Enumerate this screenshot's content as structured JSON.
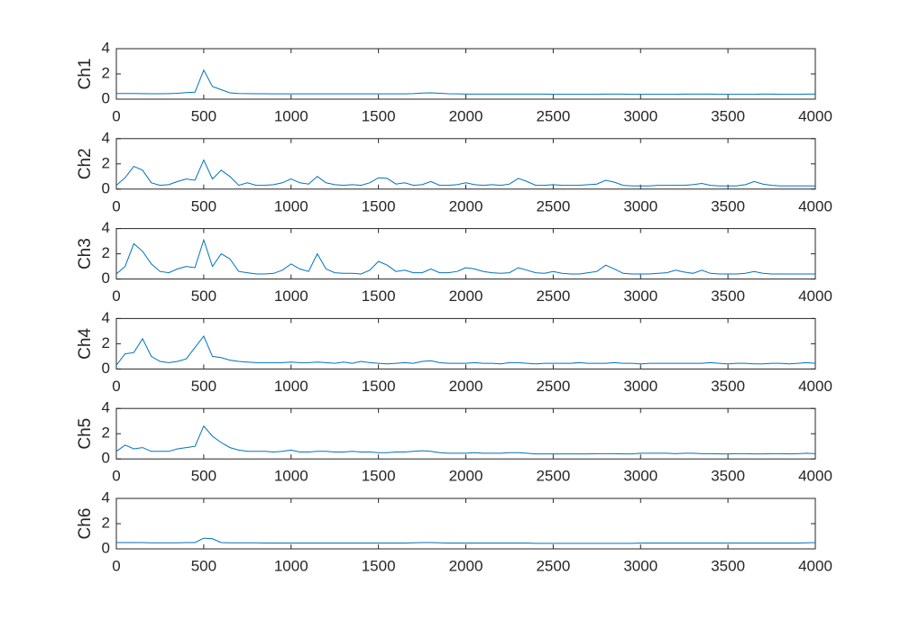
{
  "chart_data": [
    {
      "type": "line",
      "ylabel": "Ch1",
      "color": "#0072bd",
      "xlim": [
        0,
        4000
      ],
      "ylim": [
        0,
        4
      ],
      "xticks": [
        0,
        500,
        1000,
        1500,
        2000,
        2500,
        3000,
        3500,
        4000
      ],
      "yticks": [
        0,
        2,
        4
      ],
      "x": [
        0,
        50,
        100,
        150,
        200,
        250,
        300,
        350,
        400,
        450,
        500,
        550,
        600,
        650,
        700,
        750,
        800,
        850,
        900,
        950,
        1000,
        1050,
        1100,
        1150,
        1200,
        1250,
        1300,
        1350,
        1400,
        1450,
        1500,
        1550,
        1600,
        1650,
        1700,
        1750,
        1800,
        1850,
        1900,
        1950,
        2000,
        2050,
        2100,
        2150,
        2200,
        2250,
        2300,
        2350,
        2400,
        2450,
        2500,
        2550,
        2600,
        2650,
        2700,
        2750,
        2800,
        2850,
        2900,
        2950,
        3000,
        3050,
        3100,
        3150,
        3200,
        3250,
        3300,
        3350,
        3400,
        3450,
        3500,
        3550,
        3600,
        3650,
        3700,
        3750,
        3800,
        3850,
        3900,
        3950,
        4000
      ],
      "values": [
        0.45,
        0.45,
        0.45,
        0.44,
        0.43,
        0.43,
        0.44,
        0.46,
        0.52,
        0.55,
        2.3,
        1.0,
        0.75,
        0.5,
        0.45,
        0.44,
        0.43,
        0.43,
        0.42,
        0.42,
        0.42,
        0.42,
        0.42,
        0.42,
        0.42,
        0.42,
        0.42,
        0.42,
        0.42,
        0.42,
        0.42,
        0.42,
        0.42,
        0.42,
        0.44,
        0.48,
        0.5,
        0.46,
        0.43,
        0.42,
        0.4,
        0.4,
        0.4,
        0.4,
        0.4,
        0.4,
        0.4,
        0.4,
        0.4,
        0.4,
        0.38,
        0.38,
        0.38,
        0.38,
        0.38,
        0.38,
        0.4,
        0.4,
        0.4,
        0.38,
        0.38,
        0.38,
        0.38,
        0.38,
        0.38,
        0.4,
        0.4,
        0.4,
        0.4,
        0.38,
        0.38,
        0.38,
        0.38,
        0.38,
        0.4,
        0.4,
        0.38,
        0.38,
        0.38,
        0.4,
        0.4
      ]
    },
    {
      "type": "line",
      "ylabel": "Ch2",
      "color": "#0072bd",
      "xlim": [
        0,
        4000
      ],
      "ylim": [
        0,
        4
      ],
      "xticks": [
        0,
        500,
        1000,
        1500,
        2000,
        2500,
        3000,
        3500,
        4000
      ],
      "yticks": [
        0,
        2,
        4
      ],
      "x": [
        0,
        50,
        100,
        150,
        200,
        250,
        300,
        350,
        400,
        450,
        500,
        550,
        600,
        650,
        700,
        750,
        800,
        850,
        900,
        950,
        1000,
        1050,
        1100,
        1150,
        1200,
        1250,
        1300,
        1350,
        1400,
        1450,
        1500,
        1550,
        1600,
        1650,
        1700,
        1750,
        1800,
        1850,
        1900,
        1950,
        2000,
        2050,
        2100,
        2150,
        2200,
        2250,
        2300,
        2350,
        2400,
        2450,
        2500,
        2550,
        2600,
        2650,
        2700,
        2750,
        2800,
        2850,
        2900,
        2950,
        3000,
        3050,
        3100,
        3150,
        3200,
        3250,
        3300,
        3350,
        3400,
        3450,
        3500,
        3550,
        3600,
        3650,
        3700,
        3750,
        3800,
        3850,
        3900,
        3950,
        4000
      ],
      "values": [
        0.3,
        0.9,
        1.8,
        1.5,
        0.5,
        0.3,
        0.35,
        0.6,
        0.8,
        0.7,
        2.3,
        0.8,
        1.5,
        1.0,
        0.3,
        0.5,
        0.3,
        0.3,
        0.35,
        0.5,
        0.8,
        0.5,
        0.4,
        1.0,
        0.5,
        0.35,
        0.3,
        0.35,
        0.3,
        0.5,
        0.9,
        0.85,
        0.4,
        0.5,
        0.3,
        0.35,
        0.6,
        0.3,
        0.3,
        0.35,
        0.5,
        0.35,
        0.3,
        0.35,
        0.3,
        0.4,
        0.85,
        0.6,
        0.3,
        0.3,
        0.35,
        0.3,
        0.3,
        0.3,
        0.35,
        0.4,
        0.7,
        0.55,
        0.3,
        0.25,
        0.25,
        0.25,
        0.3,
        0.3,
        0.3,
        0.3,
        0.35,
        0.45,
        0.3,
        0.25,
        0.25,
        0.25,
        0.35,
        0.6,
        0.4,
        0.3,
        0.25,
        0.25,
        0.25,
        0.25,
        0.25
      ]
    },
    {
      "type": "line",
      "ylabel": "Ch3",
      "color": "#0072bd",
      "xlim": [
        0,
        4000
      ],
      "ylim": [
        0,
        4
      ],
      "xticks": [
        0,
        500,
        1000,
        1500,
        2000,
        2500,
        3000,
        3500,
        4000
      ],
      "yticks": [
        0,
        2,
        4
      ],
      "x": [
        0,
        50,
        100,
        150,
        200,
        250,
        300,
        350,
        400,
        450,
        500,
        550,
        600,
        650,
        700,
        750,
        800,
        850,
        900,
        950,
        1000,
        1050,
        1100,
        1150,
        1200,
        1250,
        1300,
        1350,
        1400,
        1450,
        1500,
        1550,
        1600,
        1650,
        1700,
        1750,
        1800,
        1850,
        1900,
        1950,
        2000,
        2050,
        2100,
        2150,
        2200,
        2250,
        2300,
        2350,
        2400,
        2450,
        2500,
        2550,
        2600,
        2650,
        2700,
        2750,
        2800,
        2850,
        2900,
        2950,
        3000,
        3050,
        3100,
        3150,
        3200,
        3250,
        3300,
        3350,
        3400,
        3450,
        3500,
        3550,
        3600,
        3650,
        3700,
        3750,
        3800,
        3850,
        3900,
        3950,
        4000
      ],
      "values": [
        0.4,
        1.0,
        2.8,
        2.2,
        1.2,
        0.6,
        0.5,
        0.8,
        1.0,
        0.9,
        3.1,
        1.0,
        2.0,
        1.6,
        0.6,
        0.5,
        0.4,
        0.4,
        0.45,
        0.7,
        1.2,
        0.8,
        0.6,
        2.0,
        0.8,
        0.5,
        0.45,
        0.45,
        0.4,
        0.7,
        1.4,
        1.1,
        0.6,
        0.7,
        0.5,
        0.5,
        0.8,
        0.5,
        0.5,
        0.6,
        0.9,
        0.8,
        0.6,
        0.5,
        0.45,
        0.5,
        0.9,
        0.7,
        0.5,
        0.45,
        0.6,
        0.45,
        0.4,
        0.4,
        0.5,
        0.6,
        1.1,
        0.8,
        0.45,
        0.4,
        0.4,
        0.4,
        0.45,
        0.5,
        0.7,
        0.55,
        0.45,
        0.7,
        0.45,
        0.4,
        0.4,
        0.4,
        0.45,
        0.6,
        0.45,
        0.4,
        0.4,
        0.4,
        0.4,
        0.4,
        0.4
      ]
    },
    {
      "type": "line",
      "ylabel": "Ch4",
      "color": "#0072bd",
      "xlim": [
        0,
        4000
      ],
      "ylim": [
        0,
        4
      ],
      "xticks": [
        0,
        500,
        1000,
        1500,
        2000,
        2500,
        3000,
        3500,
        4000
      ],
      "yticks": [
        0,
        2,
        4
      ],
      "x": [
        0,
        50,
        100,
        150,
        200,
        250,
        300,
        350,
        400,
        450,
        500,
        550,
        600,
        650,
        700,
        750,
        800,
        850,
        900,
        950,
        1000,
        1050,
        1100,
        1150,
        1200,
        1250,
        1300,
        1350,
        1400,
        1450,
        1500,
        1550,
        1600,
        1650,
        1700,
        1750,
        1800,
        1850,
        1900,
        1950,
        2000,
        2050,
        2100,
        2150,
        2200,
        2250,
        2300,
        2350,
        2400,
        2450,
        2500,
        2550,
        2600,
        2650,
        2700,
        2750,
        2800,
        2850,
        2900,
        2950,
        3000,
        3050,
        3100,
        3150,
        3200,
        3250,
        3300,
        3350,
        3400,
        3450,
        3500,
        3550,
        3600,
        3650,
        3700,
        3750,
        3800,
        3850,
        3900,
        3950,
        4000
      ],
      "values": [
        0.3,
        1.2,
        1.3,
        2.4,
        1.0,
        0.6,
        0.5,
        0.6,
        0.8,
        1.7,
        2.6,
        1.0,
        0.9,
        0.7,
        0.6,
        0.55,
        0.5,
        0.5,
        0.5,
        0.5,
        0.55,
        0.5,
        0.5,
        0.55,
        0.5,
        0.45,
        0.55,
        0.45,
        0.6,
        0.5,
        0.45,
        0.4,
        0.45,
        0.5,
        0.45,
        0.6,
        0.65,
        0.5,
        0.45,
        0.45,
        0.45,
        0.5,
        0.45,
        0.45,
        0.4,
        0.5,
        0.5,
        0.45,
        0.4,
        0.45,
        0.45,
        0.45,
        0.45,
        0.5,
        0.45,
        0.45,
        0.45,
        0.5,
        0.45,
        0.45,
        0.4,
        0.45,
        0.45,
        0.45,
        0.45,
        0.45,
        0.45,
        0.45,
        0.5,
        0.45,
        0.4,
        0.45,
        0.45,
        0.4,
        0.4,
        0.45,
        0.45,
        0.4,
        0.45,
        0.5,
        0.45
      ]
    },
    {
      "type": "line",
      "ylabel": "Ch5",
      "color": "#0072bd",
      "xlim": [
        0,
        4000
      ],
      "ylim": [
        0,
        4
      ],
      "xticks": [
        0,
        500,
        1000,
        1500,
        2000,
        2500,
        3000,
        3500,
        4000
      ],
      "yticks": [
        0,
        2,
        4
      ],
      "x": [
        0,
        50,
        100,
        150,
        200,
        250,
        300,
        350,
        400,
        450,
        500,
        550,
        600,
        650,
        700,
        750,
        800,
        850,
        900,
        950,
        1000,
        1050,
        1100,
        1150,
        1200,
        1250,
        1300,
        1350,
        1400,
        1450,
        1500,
        1550,
        1600,
        1650,
        1700,
        1750,
        1800,
        1850,
        1900,
        1950,
        2000,
        2050,
        2100,
        2150,
        2200,
        2250,
        2300,
        2350,
        2400,
        2450,
        2500,
        2550,
        2600,
        2650,
        2700,
        2750,
        2800,
        2850,
        2900,
        2950,
        3000,
        3050,
        3100,
        3150,
        3200,
        3250,
        3300,
        3350,
        3400,
        3450,
        3500,
        3550,
        3600,
        3650,
        3700,
        3750,
        3800,
        3850,
        3900,
        3950,
        4000
      ],
      "values": [
        0.6,
        1.1,
        0.8,
        0.9,
        0.6,
        0.6,
        0.6,
        0.8,
        0.9,
        1.0,
        2.6,
        1.8,
        1.3,
        0.9,
        0.7,
        0.6,
        0.6,
        0.6,
        0.55,
        0.6,
        0.7,
        0.55,
        0.55,
        0.6,
        0.6,
        0.55,
        0.55,
        0.6,
        0.55,
        0.55,
        0.5,
        0.5,
        0.55,
        0.55,
        0.6,
        0.65,
        0.6,
        0.5,
        0.45,
        0.45,
        0.45,
        0.5,
        0.45,
        0.45,
        0.45,
        0.5,
        0.5,
        0.45,
        0.4,
        0.4,
        0.4,
        0.4,
        0.4,
        0.4,
        0.4,
        0.42,
        0.42,
        0.42,
        0.4,
        0.4,
        0.45,
        0.45,
        0.45,
        0.45,
        0.42,
        0.45,
        0.45,
        0.42,
        0.42,
        0.4,
        0.4,
        0.42,
        0.42,
        0.4,
        0.4,
        0.42,
        0.42,
        0.4,
        0.42,
        0.45,
        0.42
      ]
    },
    {
      "type": "line",
      "ylabel": "Ch6",
      "color": "#0072bd",
      "xlim": [
        0,
        4000
      ],
      "ylim": [
        0,
        4
      ],
      "xticks": [
        0,
        500,
        1000,
        1500,
        2000,
        2500,
        3000,
        3500,
        4000
      ],
      "yticks": [
        0,
        2,
        4
      ],
      "x": [
        0,
        50,
        100,
        150,
        200,
        250,
        300,
        350,
        400,
        450,
        500,
        550,
        600,
        650,
        700,
        750,
        800,
        850,
        900,
        950,
        1000,
        1050,
        1100,
        1150,
        1200,
        1250,
        1300,
        1350,
        1400,
        1450,
        1500,
        1550,
        1600,
        1650,
        1700,
        1750,
        1800,
        1850,
        1900,
        1950,
        2000,
        2050,
        2100,
        2150,
        2200,
        2250,
        2300,
        2350,
        2400,
        2450,
        2500,
        2550,
        2600,
        2650,
        2700,
        2750,
        2800,
        2850,
        2900,
        2950,
        3000,
        3050,
        3100,
        3150,
        3200,
        3250,
        3300,
        3350,
        3400,
        3450,
        3500,
        3550,
        3600,
        3650,
        3700,
        3750,
        3800,
        3850,
        3900,
        3950,
        4000
      ],
      "values": [
        0.5,
        0.5,
        0.5,
        0.5,
        0.48,
        0.48,
        0.48,
        0.48,
        0.5,
        0.5,
        0.85,
        0.8,
        0.5,
        0.48,
        0.48,
        0.48,
        0.48,
        0.46,
        0.46,
        0.46,
        0.46,
        0.46,
        0.46,
        0.46,
        0.46,
        0.46,
        0.46,
        0.46,
        0.46,
        0.46,
        0.46,
        0.46,
        0.46,
        0.46,
        0.48,
        0.5,
        0.5,
        0.48,
        0.46,
        0.46,
        0.46,
        0.46,
        0.46,
        0.46,
        0.46,
        0.46,
        0.46,
        0.46,
        0.44,
        0.44,
        0.44,
        0.44,
        0.44,
        0.44,
        0.44,
        0.44,
        0.44,
        0.44,
        0.44,
        0.44,
        0.46,
        0.46,
        0.46,
        0.46,
        0.46,
        0.46,
        0.46,
        0.46,
        0.46,
        0.46,
        0.46,
        0.46,
        0.46,
        0.46,
        0.46,
        0.46,
        0.46,
        0.46,
        0.46,
        0.48,
        0.5
      ]
    }
  ]
}
